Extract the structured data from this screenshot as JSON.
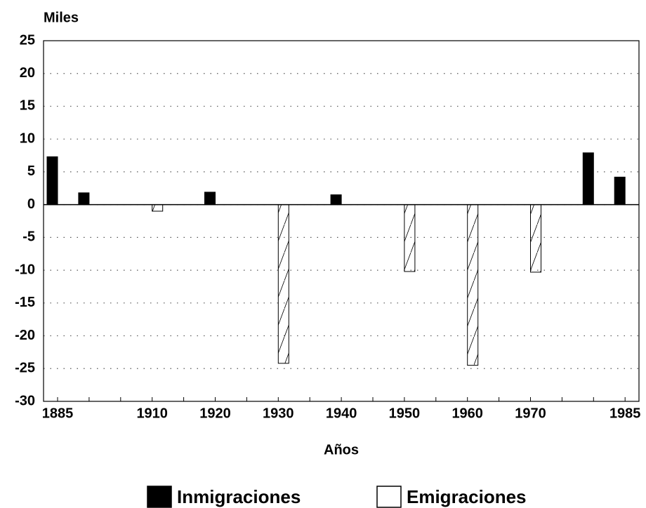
{
  "chart_data": {
    "type": "bar",
    "title": "Miles",
    "x_label": "Años",
    "categories": [
      "1885",
      null,
      null,
      "1910",
      null,
      "1920",
      null,
      "1930",
      null,
      "1940",
      null,
      "1950",
      null,
      "1960",
      null,
      "1970",
      null,
      null,
      "1985"
    ],
    "series": [
      {
        "name": "Inmigraciones",
        "color": "#000000",
        "hatch": false,
        "values": [
          7.3,
          1.8,
          null,
          null,
          null,
          1.9,
          null,
          null,
          null,
          1.5,
          null,
          null,
          null,
          null,
          null,
          null,
          null,
          7.9,
          4.2
        ]
      },
      {
        "name": "Emigraciones",
        "color": "#ffffff",
        "hatch": true,
        "values": [
          null,
          null,
          null,
          -1,
          null,
          null,
          null,
          -24.2,
          null,
          null,
          null,
          -10.2,
          null,
          -24.5,
          null,
          -10.3,
          null,
          null,
          null
        ]
      }
    ],
    "ylim": [
      -30,
      25
    ],
    "yticks": [
      -30,
      -25,
      -20,
      -15,
      -10,
      -5,
      0,
      5,
      10,
      15,
      20,
      25
    ],
    "grid": true,
    "legend": "bottom"
  }
}
